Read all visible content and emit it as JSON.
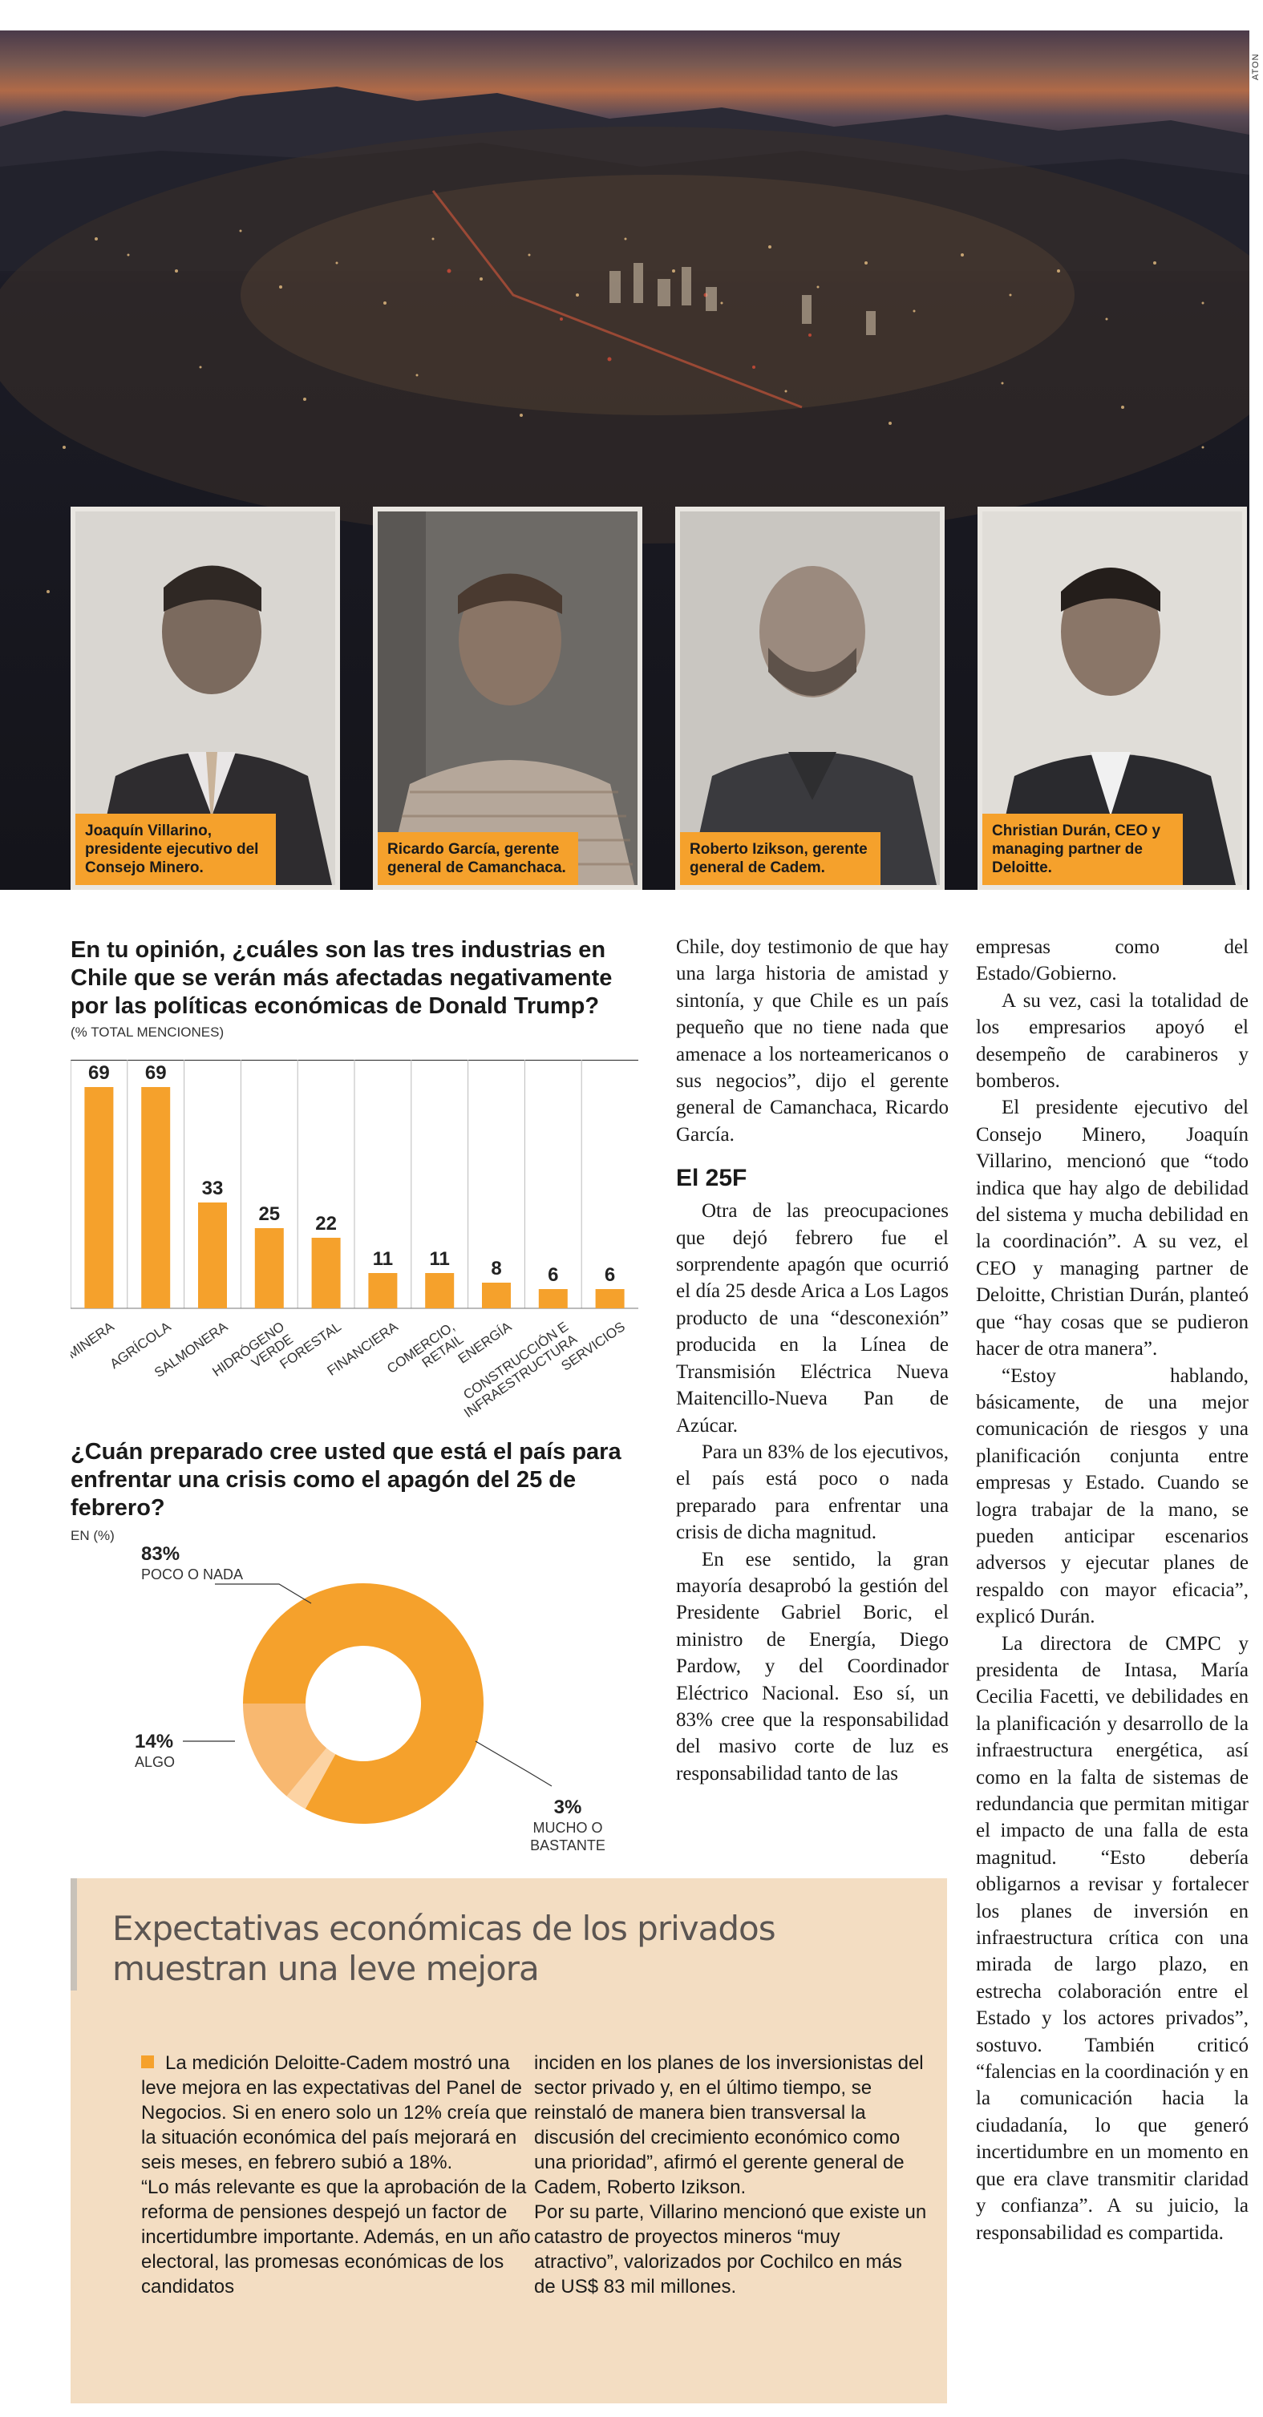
{
  "photo_credit": "ATON",
  "portraits": [
    {
      "caption": "Joaquín Villarino, presidente ejecutivo del Consejo Minero."
    },
    {
      "caption": "Ricardo García, gerente general de Camanchaca."
    },
    {
      "caption": "Roberto Izikson, gerente general de Cadem."
    },
    {
      "caption": "Christian Durán, CEO y managing partner de Deloitte."
    }
  ],
  "chart_data": [
    {
      "type": "bar",
      "title": "En tu opinión, ¿cuáles son las tres industrias en Chile que se verán más afectadas negativamente por las políticas económicas de Donald Trump?",
      "note": "(% TOTAL MENCIONES)",
      "categories": [
        "MINERA",
        "AGRÍCOLA",
        "SALMONERA",
        "HIDRÓGENO VERDE",
        "FORESTAL",
        "FINANCIERA",
        "COMERCIO, RETAIL",
        "ENERGÍA",
        "CONSTRUCCIÓN E INFRAESTRUCTURA",
        "SERVICIOS"
      ],
      "category_lines": [
        [
          "MINERA"
        ],
        [
          "AGRÍCOLA"
        ],
        [
          "SALMONERA"
        ],
        [
          "HIDRÓGENO",
          "VERDE"
        ],
        [
          "FORESTAL"
        ],
        [
          "FINANCIERA"
        ],
        [
          "COMERCIO,",
          "RETAIL"
        ],
        [
          "ENERGÍA"
        ],
        [
          "CONSTRUCCIÓN E",
          "INFRAESTRUCTURA"
        ],
        [
          "SERVICIOS"
        ]
      ],
      "values": [
        69,
        69,
        33,
        25,
        22,
        11,
        11,
        8,
        6,
        6
      ],
      "ylim": [
        0,
        80
      ],
      "color": "#f5a12c"
    },
    {
      "type": "pie",
      "title": "¿Cuán preparado cree usted que está el país para enfrentar una crisis como el apagón del 25 de febrero?",
      "note": "EN (%)",
      "slices": [
        {
          "label": "POCO O NADA",
          "value": 83,
          "display": "83%",
          "color": "#f5a12c"
        },
        {
          "label": "MUCHO O BASTANTE",
          "value": 3,
          "display": "3%",
          "color": "#fcd3a3"
        },
        {
          "label": "ALGO",
          "value": 14,
          "display": "14%",
          "color": "#f8b870"
        }
      ]
    }
  ],
  "article": {
    "col1": [
      "Chile, doy testimonio de que hay una larga historia de amistad y sintonía, y que Chile es un país pequeño que no tiene nada que amenace a los norteamericanos o sus negocios”, dijo el gerente general de Camanchaca, Ricardo García."
    ],
    "subhead": "El 25F",
    "col1b": [
      "Otra de las preocupaciones que dejó febrero fue el sorprendente apagón que ocurrió el día 25 desde Arica a Los Lagos producto de una “desconexión” producida en la Línea de Transmisión Eléctrica Nueva Maitencillo-Nueva Pan de Azúcar.",
      "Para un 83% de los ejecutivos, el país está poco o nada preparado para enfrentar una crisis de dicha magnitud.",
      "En ese sentido, la gran mayoría desaprobó la gestión del Presidente Gabriel Boric, el ministro de Energía, Diego Pardow, y del Coordinador Eléctrico Nacional. Eso sí, un 83% cree que la responsabilidad del masivo corte de luz es responsabilidad tanto de las"
    ],
    "col2": [
      "empresas como del Estado/Gobierno.",
      "A su vez, casi la totalidad de los empresarios apoyó el desempeño de carabineros y bomberos.",
      "El presidente ejecutivo del Consejo Minero, Joaquín Villarino, mencionó que “todo indica que hay algo de debilidad del sistema y mucha debilidad en la coordinación”. A su vez, el CEO y managing partner de Deloitte, Christian Durán, planteó que “hay cosas que se pudieron hacer de otra manera”.",
      "“Estoy hablando, básicamente, de una mejor comunicación de riesgos y una planificación conjunta entre empresas y Estado. Cuando se logra trabajar de la mano, se pueden anticipar escenarios adversos y ejecutar planes de respaldo con mayor eficacia”, explicó Durán.",
      "La directora de CMPC y presidenta de Intasa, María Cecilia Facetti, ve debilidades en la planificación y desarrollo de la infraestructura energética, así como en la falta de sistemas de redundancia que permitan mitigar el impacto de una falla de esta magnitud. “Esto debería obligarnos a revisar y fortalecer los planes de inversión en infraestructura crítica con una mirada de largo plazo, en estrecha colaboración entre el Estado y los actores privados”, sostuvo. También criticó “falencias en la coordinación y en la comunicación hacia la ciudadanía, lo que generó incertidumbre en un momento en que era clave transmitir claridad y confianza”. A su juicio, la responsabilidad es compartida."
    ]
  },
  "sidebar": {
    "title": "Expectativas económicas de los privados muestran una leve mejora",
    "col1": [
      "La medición Deloitte-Cadem mostró una leve mejora en las expectativas del Panel de Negocios. Si en enero solo un 12% creía que la situación económica del país mejorará en seis meses, en febrero subió a 18%.",
      "“Lo más relevante es que la aprobación de la reforma de pensiones despejó un factor de incertidumbre importante. Además, en un año electoral, las promesas económicas de los candidatos"
    ],
    "col2": [
      "inciden en los planes de los inversionistas del sector privado y, en el último tiempo, se reinstaló de manera bien transversal la discusión del crecimiento económico como una prioridad”, afirmó el gerente general de Cadem, Roberto Izikson.",
      "Por su parte, Villarino mencionó que existe un catastro de proyectos mineros “muy atractivo”, valorizados por Cochilco en más de US$ 83 mil millones."
    ]
  }
}
